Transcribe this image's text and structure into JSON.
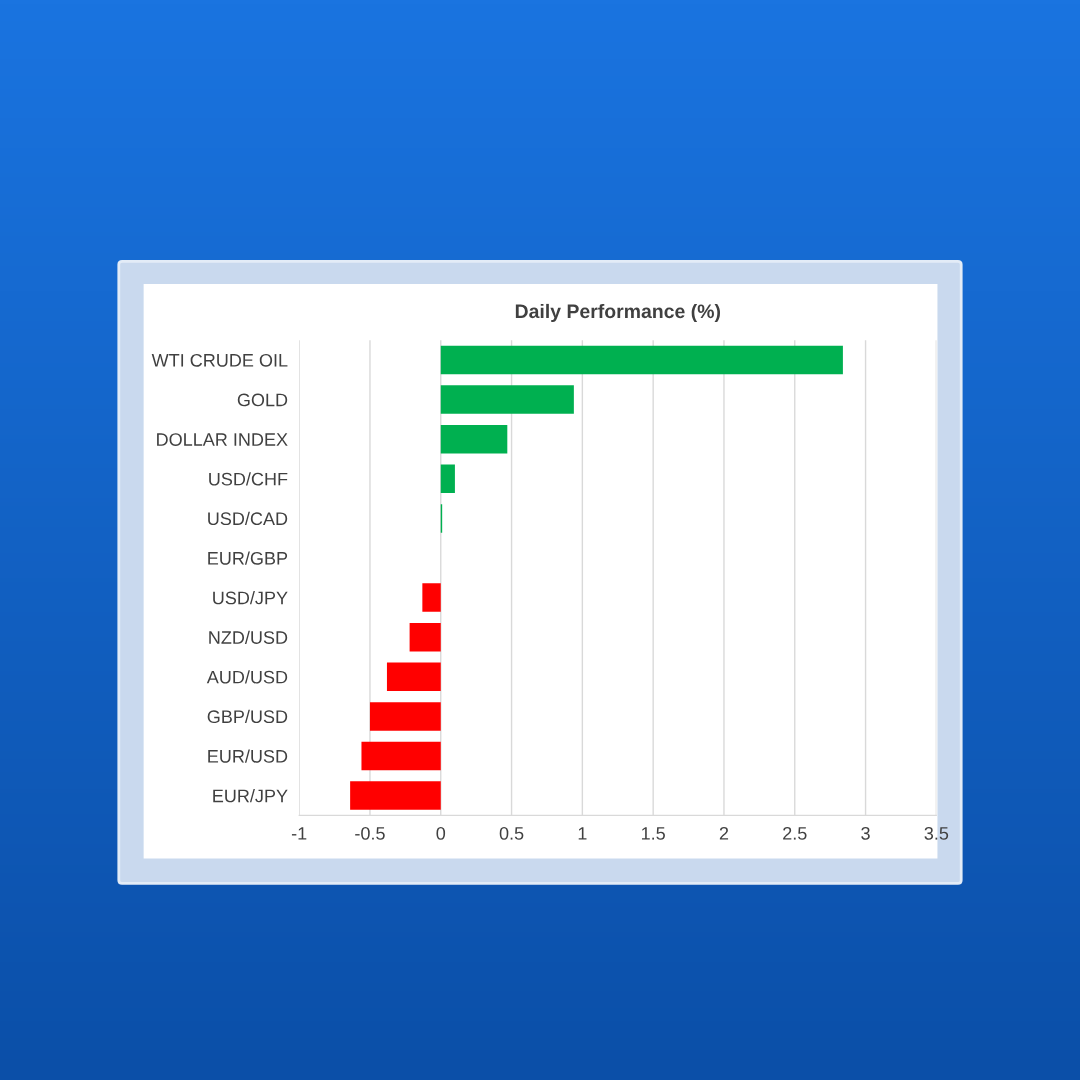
{
  "chart_data": {
    "type": "bar",
    "orientation": "horizontal",
    "title": "Daily Performance (%)",
    "categories": [
      "WTI CRUDE OIL",
      "GOLD",
      "DOLLAR INDEX",
      "USD/CHF",
      "USD/CAD",
      "EUR/GBP",
      "USD/JPY",
      "NZD/USD",
      "AUD/USD",
      "GBP/USD",
      "EUR/USD",
      "EUR/JPY"
    ],
    "values": [
      2.84,
      0.94,
      0.47,
      0.1,
      0.01,
      0,
      -0.13,
      -0.22,
      -0.38,
      -0.5,
      -0.56,
      -0.64
    ],
    "colors": [
      "#00b050",
      "#00b050",
      "#00b050",
      "#00b050",
      "#00b050",
      "#d9d9d9",
      "#ff0000",
      "#ff0000",
      "#ff0000",
      "#ff0000",
      "#ff0000",
      "#ff0000"
    ],
    "xlim": [
      -1,
      3.5
    ],
    "xticks": [
      -1,
      -0.5,
      0,
      0.5,
      1,
      1.5,
      2,
      2.5,
      3,
      3.5
    ],
    "grid": "x"
  }
}
